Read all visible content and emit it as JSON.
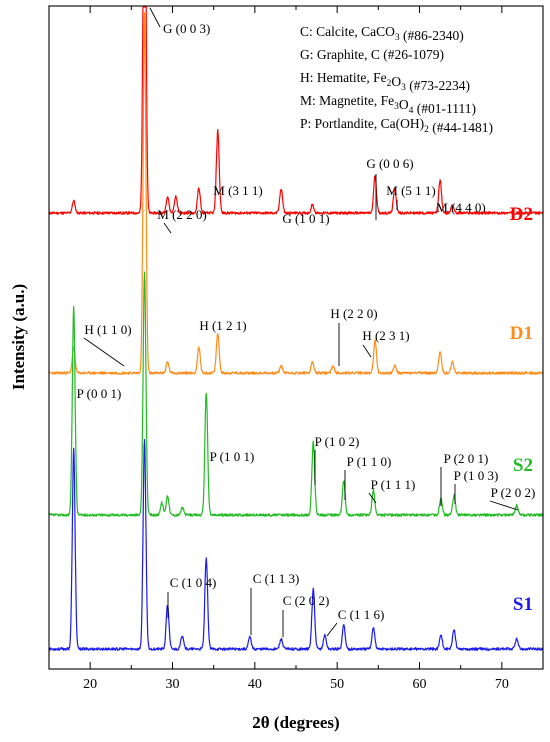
{
  "chart_data": {
    "type": "line",
    "xlabel": "2θ (degrees)",
    "ylabel": "Intensity (a.u.)",
    "xlim": [
      15,
      75
    ],
    "x_ticks": [
      20,
      30,
      40,
      50,
      60,
      70
    ],
    "y_ticks_shown": false,
    "legend_position": "top-right",
    "legend": [
      {
        "letter": "C",
        "desc": "Calcite, CaCO",
        "sub": "3",
        "ref": "(#86-2340)"
      },
      {
        "letter": "G",
        "desc": "Graphite, C",
        "sub": "",
        "ref": "(#26-1079)"
      },
      {
        "letter": "H",
        "desc": "Hematite, Fe",
        "sub": "2",
        "desc2": "O",
        "sub2": "3",
        "ref": "(#73-2234)"
      },
      {
        "letter": "M",
        "desc": "Magnetite, Fe",
        "sub": "3",
        "desc2": "O",
        "sub2": "4",
        "ref": "(#01-1111)"
      },
      {
        "letter": "P",
        "desc": "Portlandite, Ca(OH)",
        "sub": "2",
        "ref": "(#44-1481)"
      }
    ],
    "series": [
      {
        "name": "D2",
        "color": "#ff0000",
        "peaks": [
          [
            18.0,
            3
          ],
          [
            26.6,
            100
          ],
          [
            29.4,
            4
          ],
          [
            30.4,
            4
          ],
          [
            33.2,
            6
          ],
          [
            35.5,
            20
          ],
          [
            43.2,
            6
          ],
          [
            47.0,
            2
          ],
          [
            54.6,
            9
          ],
          [
            57.0,
            6
          ],
          [
            62.5,
            8
          ],
          [
            64.0,
            2
          ]
        ],
        "annotations": [
          {
            "label": "G (0 0 3)",
            "peak": 26.5
          },
          {
            "label": "M (2 2 0)",
            "peak": 30.2
          },
          {
            "label": "M (3 1 1)",
            "peak": 35.5
          },
          {
            "label": "G (1 0 1)",
            "peak": 43.3
          },
          {
            "label": "G (0 0 6)",
            "peak": 54.7
          },
          {
            "label": "M (5 1 1)",
            "peak": 57.0
          },
          {
            "label": "M (4 4 0)",
            "peak": 62.6
          }
        ]
      },
      {
        "name": "D1",
        "color": "#ff8c1a",
        "peaks": [
          [
            18.0,
            7
          ],
          [
            26.6,
            100
          ],
          [
            29.4,
            3
          ],
          [
            33.2,
            7
          ],
          [
            35.5,
            11
          ],
          [
            43.2,
            2
          ],
          [
            47.0,
            3
          ],
          [
            49.5,
            2
          ],
          [
            54.6,
            9
          ],
          [
            57.0,
            2
          ],
          [
            62.5,
            6
          ],
          [
            64.0,
            3
          ]
        ],
        "annotations": [
          {
            "label": "H (1 1 0)",
            "peak": 24.0
          },
          {
            "label": "H (1 2 1)",
            "peak": 33.2
          },
          {
            "label": "H (2 2 0)",
            "peak": 49.5
          },
          {
            "label": "H (2 3 1)",
            "peak": 54.0
          }
        ]
      },
      {
        "name": "S2",
        "color": "#22bb22",
        "peaks": [
          [
            18.0,
            85
          ],
          [
            26.6,
            100
          ],
          [
            28.7,
            5
          ],
          [
            29.4,
            8
          ],
          [
            31.2,
            3
          ],
          [
            34.1,
            50
          ],
          [
            47.1,
            30
          ],
          [
            50.8,
            14
          ],
          [
            54.4,
            10
          ],
          [
            62.6,
            7
          ],
          [
            64.2,
            8
          ],
          [
            71.8,
            4
          ]
        ],
        "annotations": [
          {
            "label": "P (0 0 1)",
            "peak": 18.0
          },
          {
            "label": "P (1 0 1)",
            "peak": 34.1
          },
          {
            "label": "P (1 0 2)",
            "peak": 47.1
          },
          {
            "label": "P (1 1 0)",
            "peak": 50.8
          },
          {
            "label": "P (1 1 1)",
            "peak": 54.4
          },
          {
            "label": "P (2 0 1)",
            "peak": 62.6
          },
          {
            "label": "P (1 0 3)",
            "peak": 64.2
          },
          {
            "label": "P (2 0 2)",
            "peak": 71.8
          }
        ]
      },
      {
        "name": "S1",
        "color": "#1a1aee",
        "peaks": [
          [
            18.0,
            100
          ],
          [
            26.6,
            105
          ],
          [
            29.4,
            22
          ],
          [
            31.2,
            7
          ],
          [
            34.1,
            45
          ],
          [
            39.4,
            6
          ],
          [
            43.2,
            5
          ],
          [
            47.1,
            30
          ],
          [
            48.5,
            7
          ],
          [
            50.8,
            12
          ],
          [
            54.4,
            11
          ],
          [
            62.6,
            7
          ],
          [
            64.2,
            10
          ],
          [
            71.8,
            5
          ]
        ],
        "annotations": [
          {
            "label": "C (1 0 4)",
            "peak": 29.4
          },
          {
            "label": "C (1 1 3)",
            "peak": 39.4
          },
          {
            "label": "C (2 0 2)",
            "peak": 43.2
          },
          {
            "label": "C (1 1 6)",
            "peak": 48.5
          }
        ]
      }
    ]
  }
}
